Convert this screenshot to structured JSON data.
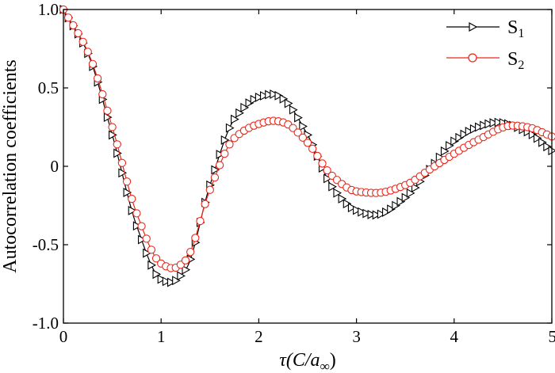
{
  "chart_data": {
    "type": "line",
    "xlabel_main": "τ(C/a",
    "xlabel_sub": "∞",
    "xlabel_close": ")",
    "ylabel": "Autocorrelation coefficients",
    "xlim": [
      0,
      5
    ],
    "ylim": [
      -1.0,
      1.0
    ],
    "xticks": [
      0,
      1,
      2,
      3,
      4,
      5
    ],
    "xtick_labels": [
      "0",
      "1",
      "2",
      "3",
      "4",
      "5"
    ],
    "yticks": [
      -1.0,
      -0.5,
      0,
      0.5,
      1.0
    ],
    "ytick_labels": [
      "-1.0",
      "-0.5",
      "0",
      "0.5",
      "1.0"
    ],
    "grid": false,
    "legend_position": "top-right",
    "series": [
      {
        "name": "S",
        "subscript": "1",
        "color": "#000000",
        "marker": "triangle-right",
        "x": [
          0,
          0.25,
          0.5,
          0.75,
          1.0,
          1.1,
          1.25,
          1.5,
          1.75,
          2.0,
          2.15,
          2.25,
          2.5,
          2.75,
          3.0,
          3.2,
          3.5,
          3.75,
          4.0,
          4.25,
          4.45,
          4.75,
          5.0
        ],
        "y": [
          1.0,
          0.72,
          0.2,
          -0.38,
          -0.72,
          -0.74,
          -0.66,
          -0.12,
          0.3,
          0.44,
          0.46,
          0.43,
          0.2,
          -0.13,
          -0.28,
          -0.31,
          -0.2,
          -0.02,
          0.16,
          0.25,
          0.28,
          0.22,
          0.1
        ]
      },
      {
        "name": "S",
        "subscript": "2",
        "color": "#e8291c",
        "marker": "circle",
        "x": [
          0,
          0.25,
          0.5,
          0.75,
          1.0,
          1.12,
          1.25,
          1.5,
          1.75,
          2.0,
          2.15,
          2.25,
          2.5,
          2.75,
          3.0,
          3.2,
          3.5,
          3.75,
          4.0,
          4.25,
          4.6,
          4.75,
          5.0
        ],
        "y": [
          1.0,
          0.73,
          0.25,
          -0.3,
          -0.62,
          -0.65,
          -0.6,
          -0.15,
          0.18,
          0.27,
          0.29,
          0.28,
          0.15,
          -0.06,
          -0.16,
          -0.17,
          -0.12,
          -0.02,
          0.08,
          0.17,
          0.26,
          0.25,
          0.19
        ]
      }
    ]
  }
}
